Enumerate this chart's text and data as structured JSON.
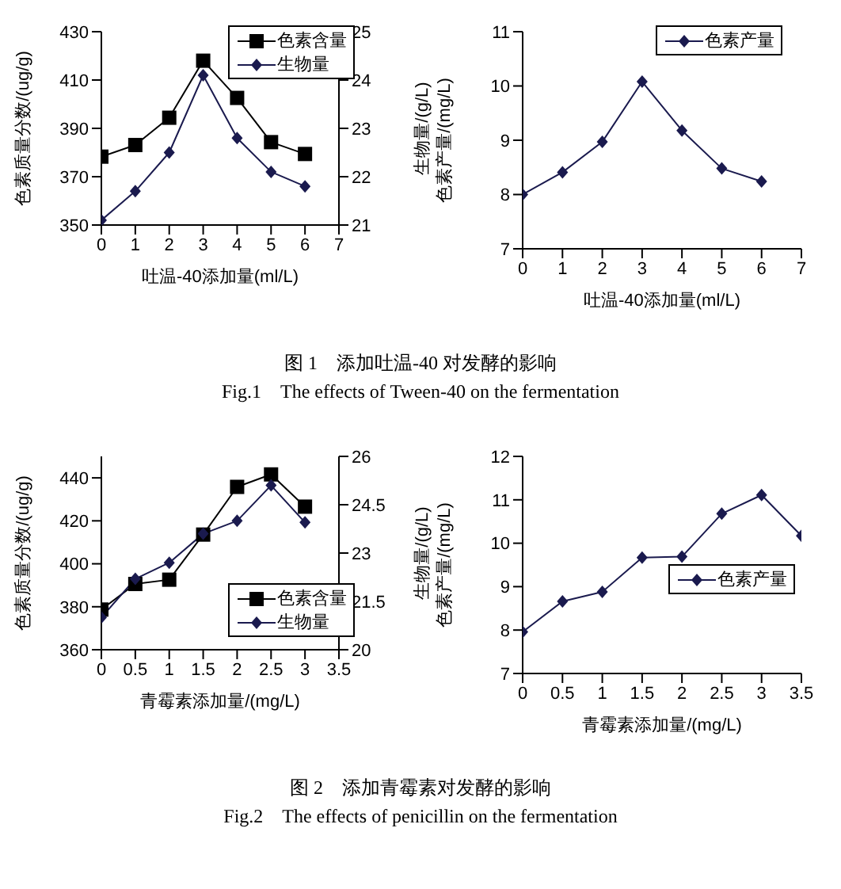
{
  "chart_data": [
    {
      "type": "line",
      "ylabel": "色素质量分数/(ug/g)",
      "y2label": "生物量/(g/L)",
      "xlabel": "吐温-40添加量(ml/L)",
      "x": [
        0,
        1,
        2,
        3,
        4,
        5,
        6
      ],
      "xlim": [
        0,
        7
      ],
      "xticks": [
        0,
        1,
        2,
        3,
        4,
        5,
        6,
        7
      ],
      "ylim": [
        350,
        430
      ],
      "yticks": [
        350,
        370,
        390,
        410,
        430
      ],
      "y2lim": [
        21,
        25
      ],
      "y2ticks": [
        21,
        22,
        23,
        24,
        25
      ],
      "legend": "top right",
      "grid": false,
      "line_style": "solid",
      "series": [
        {
          "name": "色素含量",
          "color": "#000000",
          "marker": "square",
          "values": [
            378.3,
            383.1,
            394.4,
            418,
            402.6,
            384.3,
            379.4
          ]
        },
        {
          "name": "生物量",
          "color": "#1a1a4e",
          "marker": "diamond",
          "axis": "y2",
          "values": [
            21.1,
            21.7,
            22.5,
            24.1,
            22.8,
            22.1,
            21.8
          ]
        }
      ],
      "annotations": [
        "图 1　添加吐温-40 对发酵的影响",
        "Fig.1　The effects of Tween-40 on the fermentation"
      ]
    },
    {
      "type": "line",
      "ylabel": "色素产量/(mg/L)",
      "xlabel": "吐温-40添加量(ml/L)",
      "x": [
        0,
        1,
        2,
        3,
        4,
        5,
        6
      ],
      "xlim": [
        0,
        7
      ],
      "xticks": [
        0,
        1,
        2,
        3,
        4,
        5,
        6,
        7
      ],
      "ylim": [
        7,
        11
      ],
      "yticks": [
        7,
        8,
        9,
        10,
        11
      ],
      "legend": "top right",
      "grid": false,
      "line_style": "solid",
      "series": [
        {
          "name": "色素产量",
          "color": "#1a1a4e",
          "marker": "diamond",
          "values": [
            8.0,
            8.41,
            8.97,
            10.08,
            9.18,
            8.48,
            8.24
          ]
        }
      ]
    },
    {
      "type": "line",
      "ylabel": "色素质量分数/(ug/g)",
      "y2label": "生物量/(g/L)",
      "xlabel": "青霉素添加量/(mg/L)",
      "x": [
        0,
        0.5,
        1,
        1.5,
        2,
        2.5,
        3
      ],
      "xlim": [
        0,
        3.5
      ],
      "xticks": [
        0,
        0.5,
        1,
        1.5,
        2,
        2.5,
        3,
        3.5
      ],
      "ylim": [
        360,
        450
      ],
      "yticks": [
        360,
        380,
        400,
        420,
        440
      ],
      "y2lim": [
        20,
        26
      ],
      "y2ticks": [
        20,
        21.5,
        23,
        24.5,
        26
      ],
      "legend": "right",
      "grid": false,
      "line_style": "solid",
      "series": [
        {
          "name": "色素含量",
          "color": "#000000",
          "marker": "square",
          "values": [
            378.7,
            390.6,
            392.6,
            413.6,
            435.8,
            441.6,
            426.6
          ]
        },
        {
          "name": "生物量",
          "color": "#1a1a4e",
          "marker": "diamond",
          "axis": "y2",
          "values": [
            21.0,
            22.2,
            22.7,
            23.6,
            24.0,
            25.1,
            23.95
          ]
        }
      ],
      "annotations": [
        "图 2　添加青霉素对发酵的影响",
        "Fig.2　The effects of penicillin on the fermentation"
      ]
    },
    {
      "type": "line",
      "ylabel": "色素产量/(mg/L)",
      "xlabel": "青霉素添加量/(mg/L)",
      "x": [
        0,
        0.5,
        1,
        1.5,
        2,
        2.5,
        3,
        3.5
      ],
      "xlim": [
        0,
        3.5
      ],
      "xticks": [
        0,
        0.5,
        1,
        1.5,
        2,
        2.5,
        3,
        3.5
      ],
      "ylim": [
        7,
        12
      ],
      "yticks": [
        7,
        8,
        9,
        10,
        11,
        12
      ],
      "legend": "bottom right",
      "grid": false,
      "line_style": "solid",
      "series": [
        {
          "name": "色素产量",
          "color": "#1a1a4e",
          "marker": "diamond",
          "values": [
            7.96,
            8.66,
            8.88,
            9.67,
            9.69,
            10.68,
            11.11,
            10.17
          ]
        }
      ]
    }
  ]
}
